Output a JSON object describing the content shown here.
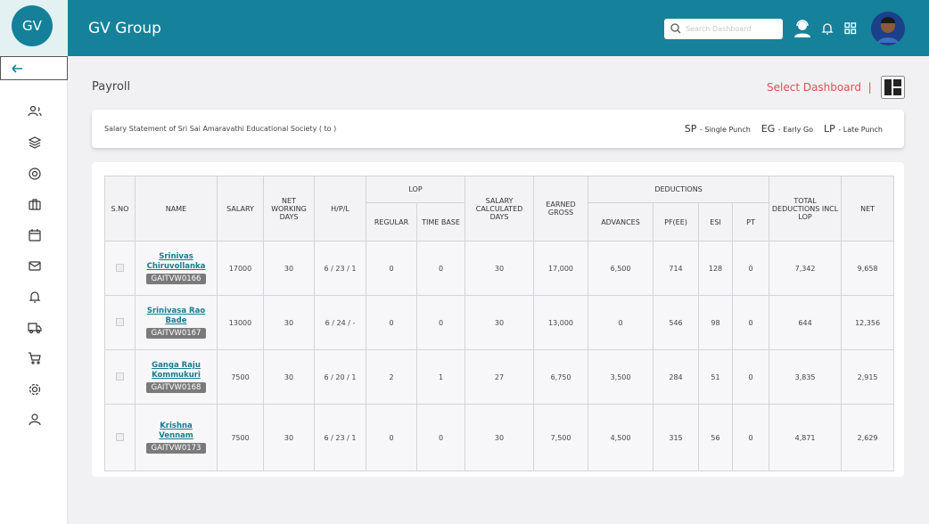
{
  "header": {
    "logo": "GV",
    "title": "GV Group",
    "search_placeholder": "Search Dashboard"
  },
  "page": {
    "title": "Payroll",
    "select_dashboard": "Select Dashboard",
    "separator": "|"
  },
  "info": {
    "statement": "Salary Statement of Sri Sai  Amaravathi Educational Society ( to )",
    "legend": [
      {
        "code": "SP",
        "label": "- Single Punch"
      },
      {
        "code": "EG",
        "label": "- Early Go"
      },
      {
        "code": "LP",
        "label": "- Late Punch"
      }
    ]
  },
  "table": {
    "columns": [
      {
        "label": "S.NO"
      },
      {
        "label": "NAME"
      },
      {
        "label": "SALARY"
      },
      {
        "label": "NET WORKING DAYS"
      },
      {
        "label": "H/P/L"
      },
      {
        "label": "LOP",
        "sub": [
          "REGULAR",
          "TIME BASE"
        ]
      },
      {
        "label": "SALARY CALCULATED DAYS"
      },
      {
        "label": "EARNED GROSS"
      },
      {
        "label": "DEDUCTIONS",
        "sub": [
          "ADVANCES",
          "PF(EE)",
          "ESI",
          "PT"
        ]
      },
      {
        "label": "TOTAL DEDUCTIONS INCL LOP"
      },
      {
        "label": "NET"
      }
    ],
    "rows": [
      {
        "name": "Srinivas Chiruvollanka",
        "code": "GAITVW0166",
        "cells": [
          "17000",
          "30",
          "6 / 23 / 1",
          "0",
          "0",
          "30",
          "17,000",
          "6,500",
          "714",
          "128",
          "0",
          "7,342",
          "9,658"
        ]
      },
      {
        "name": "Srinivasa Rao Bade",
        "code": "GAITVW0167",
        "cells": [
          "13000",
          "30",
          "6 / 24 / -",
          "0",
          "0",
          "30",
          "13,000",
          "0",
          "546",
          "98",
          "0",
          "644",
          "12,356"
        ]
      },
      {
        "name": "Ganga Raju Kommukuri",
        "code": "GAITVW0168",
        "cells": [
          "7500",
          "30",
          "6 / 20 / 1",
          "2",
          "1",
          "27",
          "6,750",
          "3,500",
          "284",
          "51",
          "0",
          "3,835",
          "2,915"
        ]
      },
      {
        "name": "Krishna Vennam",
        "code": "GAITVW0173",
        "cells": [
          "7500",
          "30",
          "6 / 23 / 1",
          "0",
          "0",
          "30",
          "7,500",
          "4,500",
          "315",
          "56",
          "0",
          "4,871",
          "2,629"
        ]
      }
    ]
  }
}
